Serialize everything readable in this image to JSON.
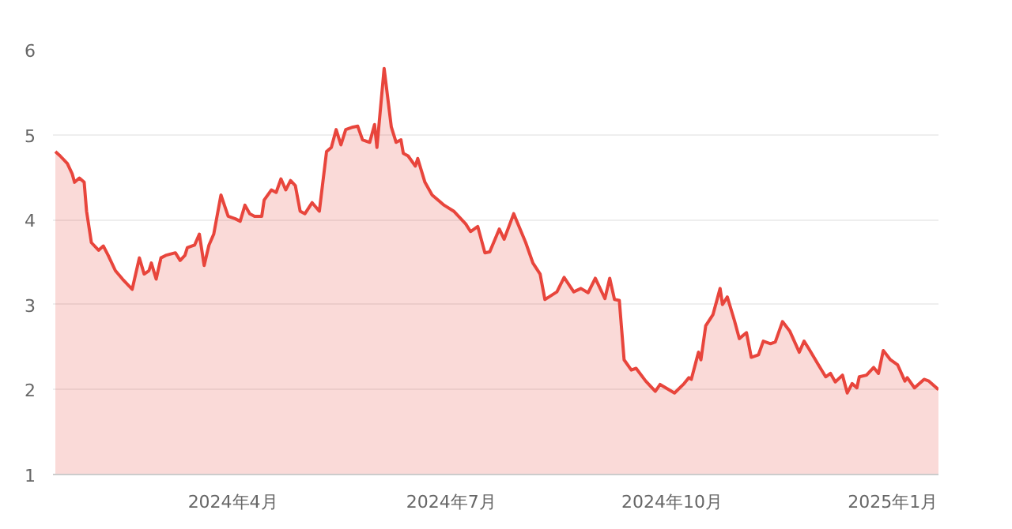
{
  "chart_data": {
    "type": "area",
    "x": [
      "2024-01-18",
      "2024-01-20",
      "2024-01-23",
      "2024-01-25",
      "2024-01-26",
      "2024-01-28",
      "2024-01-30",
      "2024-01-31",
      "2024-02-02",
      "2024-02-05",
      "2024-02-07",
      "2024-02-09",
      "2024-02-12",
      "2024-02-15",
      "2024-02-19",
      "2024-02-22",
      "2024-02-24",
      "2024-02-26",
      "2024-02-27",
      "2024-02-29",
      "2024-03-02",
      "2024-03-04",
      "2024-03-08",
      "2024-03-10",
      "2024-03-12",
      "2024-03-13",
      "2024-03-16",
      "2024-03-18",
      "2024-03-20",
      "2024-03-22",
      "2024-03-24",
      "2024-03-27",
      "2024-03-30",
      "2024-04-02",
      "2024-04-04",
      "2024-04-06",
      "2024-04-08",
      "2024-04-10",
      "2024-04-13",
      "2024-04-14",
      "2024-04-17",
      "2024-04-19",
      "2024-04-21",
      "2024-04-23",
      "2024-04-25",
      "2024-04-27",
      "2024-04-29",
      "2024-05-01",
      "2024-05-04",
      "2024-05-07",
      "2024-05-10",
      "2024-05-12",
      "2024-05-14",
      "2024-05-16",
      "2024-05-18",
      "2024-05-21",
      "2024-05-23",
      "2024-05-25",
      "2024-05-28",
      "2024-05-30",
      "2024-05-31",
      "2024-06-03",
      "2024-06-06",
      "2024-06-08",
      "2024-06-10",
      "2024-06-11",
      "2024-06-13",
      "2024-06-16",
      "2024-06-17",
      "2024-06-20",
      "2024-06-23",
      "2024-06-28",
      "2024-07-02",
      "2024-07-05",
      "2024-07-07",
      "2024-07-09",
      "2024-07-12",
      "2024-07-15",
      "2024-07-17",
      "2024-07-21",
      "2024-07-23",
      "2024-07-27",
      "2024-08-01",
      "2024-08-04",
      "2024-08-07",
      "2024-08-09",
      "2024-08-14",
      "2024-08-17",
      "2024-08-21",
      "2024-08-24",
      "2024-08-27",
      "2024-08-30",
      "2024-09-03",
      "2024-09-05",
      "2024-09-07",
      "2024-09-09",
      "2024-09-11",
      "2024-09-14",
      "2024-09-16",
      "2024-09-20",
      "2024-09-24",
      "2024-09-26",
      "2024-10-02",
      "2024-10-06",
      "2024-10-08",
      "2024-10-09",
      "2024-10-12",
      "2024-10-13",
      "2024-10-15",
      "2024-10-18",
      "2024-10-21",
      "2024-10-22",
      "2024-10-24",
      "2024-10-27",
      "2024-10-29",
      "2024-11-01",
      "2024-11-03",
      "2024-11-06",
      "2024-11-08",
      "2024-11-11",
      "2024-11-13",
      "2024-11-16",
      "2024-11-19",
      "2024-11-23",
      "2024-11-25",
      "2024-11-27",
      "2024-12-01",
      "2024-12-04",
      "2024-12-06",
      "2024-12-08",
      "2024-12-11",
      "2024-12-13",
      "2024-12-15",
      "2024-12-17",
      "2024-12-18",
      "2024-12-21",
      "2024-12-24",
      "2024-12-26",
      "2024-12-28",
      "2024-12-31",
      "2025-01-03",
      "2025-01-06",
      "2025-01-07",
      "2025-01-10",
      "2025-01-14",
      "2025-01-16",
      "2025-01-20"
    ],
    "series": [
      {
        "color": "#e8453c",
        "values": [
          4.8,
          4.75,
          4.66,
          4.54,
          4.44,
          4.49,
          4.44,
          4.1,
          3.73,
          3.64,
          3.69,
          3.58,
          3.4,
          3.3,
          3.18,
          3.55,
          3.36,
          3.4,
          3.49,
          3.3,
          3.55,
          3.58,
          3.61,
          3.52,
          3.58,
          3.67,
          3.7,
          3.83,
          3.46,
          3.7,
          3.83,
          4.29,
          4.04,
          4.01,
          3.98,
          4.17,
          4.07,
          4.04,
          4.04,
          4.23,
          4.35,
          4.32,
          4.48,
          4.35,
          4.46,
          4.4,
          4.1,
          4.07,
          4.2,
          4.1,
          4.8,
          4.85,
          5.06,
          4.88,
          5.06,
          5.09,
          5.1,
          4.94,
          4.91,
          5.12,
          4.85,
          5.78,
          5.09,
          4.91,
          4.94,
          4.78,
          4.75,
          4.63,
          4.72,
          4.44,
          4.29,
          4.17,
          4.1,
          4.01,
          3.95,
          3.86,
          3.92,
          3.61,
          3.62,
          3.89,
          3.77,
          4.07,
          3.73,
          3.49,
          3.36,
          3.06,
          3.15,
          3.32,
          3.15,
          3.19,
          3.14,
          3.31,
          3.07,
          3.31,
          3.06,
          3.05,
          2.35,
          2.23,
          2.25,
          2.1,
          1.98,
          2.06,
          1.96,
          2.07,
          2.14,
          2.12,
          2.44,
          2.35,
          2.75,
          2.88,
          3.19,
          3.0,
          3.09,
          2.81,
          2.6,
          2.67,
          2.38,
          2.41,
          2.57,
          2.54,
          2.56,
          2.8,
          2.69,
          2.44,
          2.57,
          2.48,
          2.29,
          2.15,
          2.19,
          2.09,
          2.17,
          1.96,
          2.07,
          2.02,
          2.15,
          2.17,
          2.26,
          2.19,
          2.46,
          2.35,
          2.29,
          2.1,
          2.14,
          2.02,
          2.12,
          2.1,
          2.0
        ]
      }
    ],
    "xlim": [
      "2024-01-17",
      "2025-01-20"
    ],
    "xticks": [
      {
        "value": "2024-04-01",
        "label": "2024年4月"
      },
      {
        "value": "2024-07-01",
        "label": "2024年7月"
      },
      {
        "value": "2024-10-01",
        "label": "2024年10月"
      },
      {
        "value": "2025-01-01",
        "label": "2025年1月"
      }
    ],
    "ylim": [
      1,
      6
    ],
    "yticks": [
      1,
      2,
      3,
      4,
      5,
      6
    ],
    "grid": "y"
  }
}
